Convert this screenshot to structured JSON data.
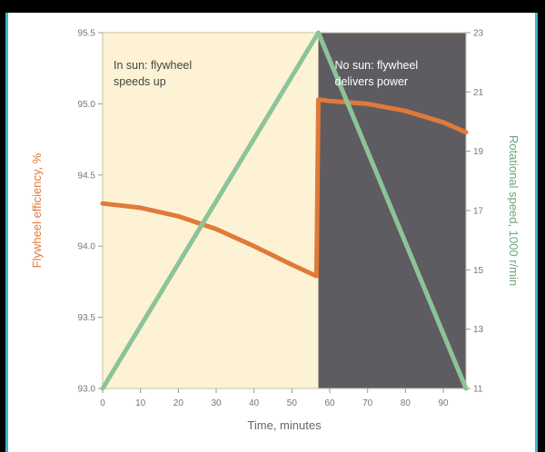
{
  "chart_data": {
    "type": "line",
    "title": "",
    "xlabel": "Time, minutes",
    "ylabel_left": "Flywheel efficiency, %",
    "ylabel_right": "Rotational speed, 1000 r/min",
    "x_ticks": [
      "0",
      "10",
      "20",
      "30",
      "40",
      "50",
      "60",
      "70",
      "80",
      "90"
    ],
    "y_left_ticks": [
      "93.0",
      "93.5",
      "94.0",
      "94.5",
      "95.0",
      "95.5"
    ],
    "y_right_ticks": [
      "11",
      "13",
      "15",
      "17",
      "19",
      "21",
      "23"
    ],
    "xlim": [
      0,
      96
    ],
    "ylim_left": [
      93.0,
      95.5
    ],
    "ylim_right": [
      11,
      23
    ],
    "regions": [
      {
        "name": "sun",
        "x_range": [
          0,
          57
        ],
        "color": "#fdf3d4",
        "label_lines": [
          "In sun: flywheel",
          "speeds up"
        ]
      },
      {
        "name": "shade",
        "x_range": [
          57,
          96
        ],
        "color": "#5e5c60",
        "label_lines": [
          "No sun: flywheel",
          "delivers power"
        ]
      }
    ],
    "series": [
      {
        "axis": "left",
        "color": "#e07a3a",
        "x": [
          0,
          10,
          20,
          30,
          40,
          50,
          56.5,
          57,
          60,
          70,
          80,
          90,
          96
        ],
        "y": [
          94.3,
          94.27,
          94.21,
          94.12,
          94.0,
          93.87,
          93.79,
          95.03,
          95.02,
          95.0,
          94.95,
          94.87,
          94.8
        ]
      },
      {
        "axis": "right",
        "color": "#8cc49a",
        "x": [
          0,
          57,
          96
        ],
        "y": [
          11,
          23,
          11
        ]
      }
    ]
  }
}
